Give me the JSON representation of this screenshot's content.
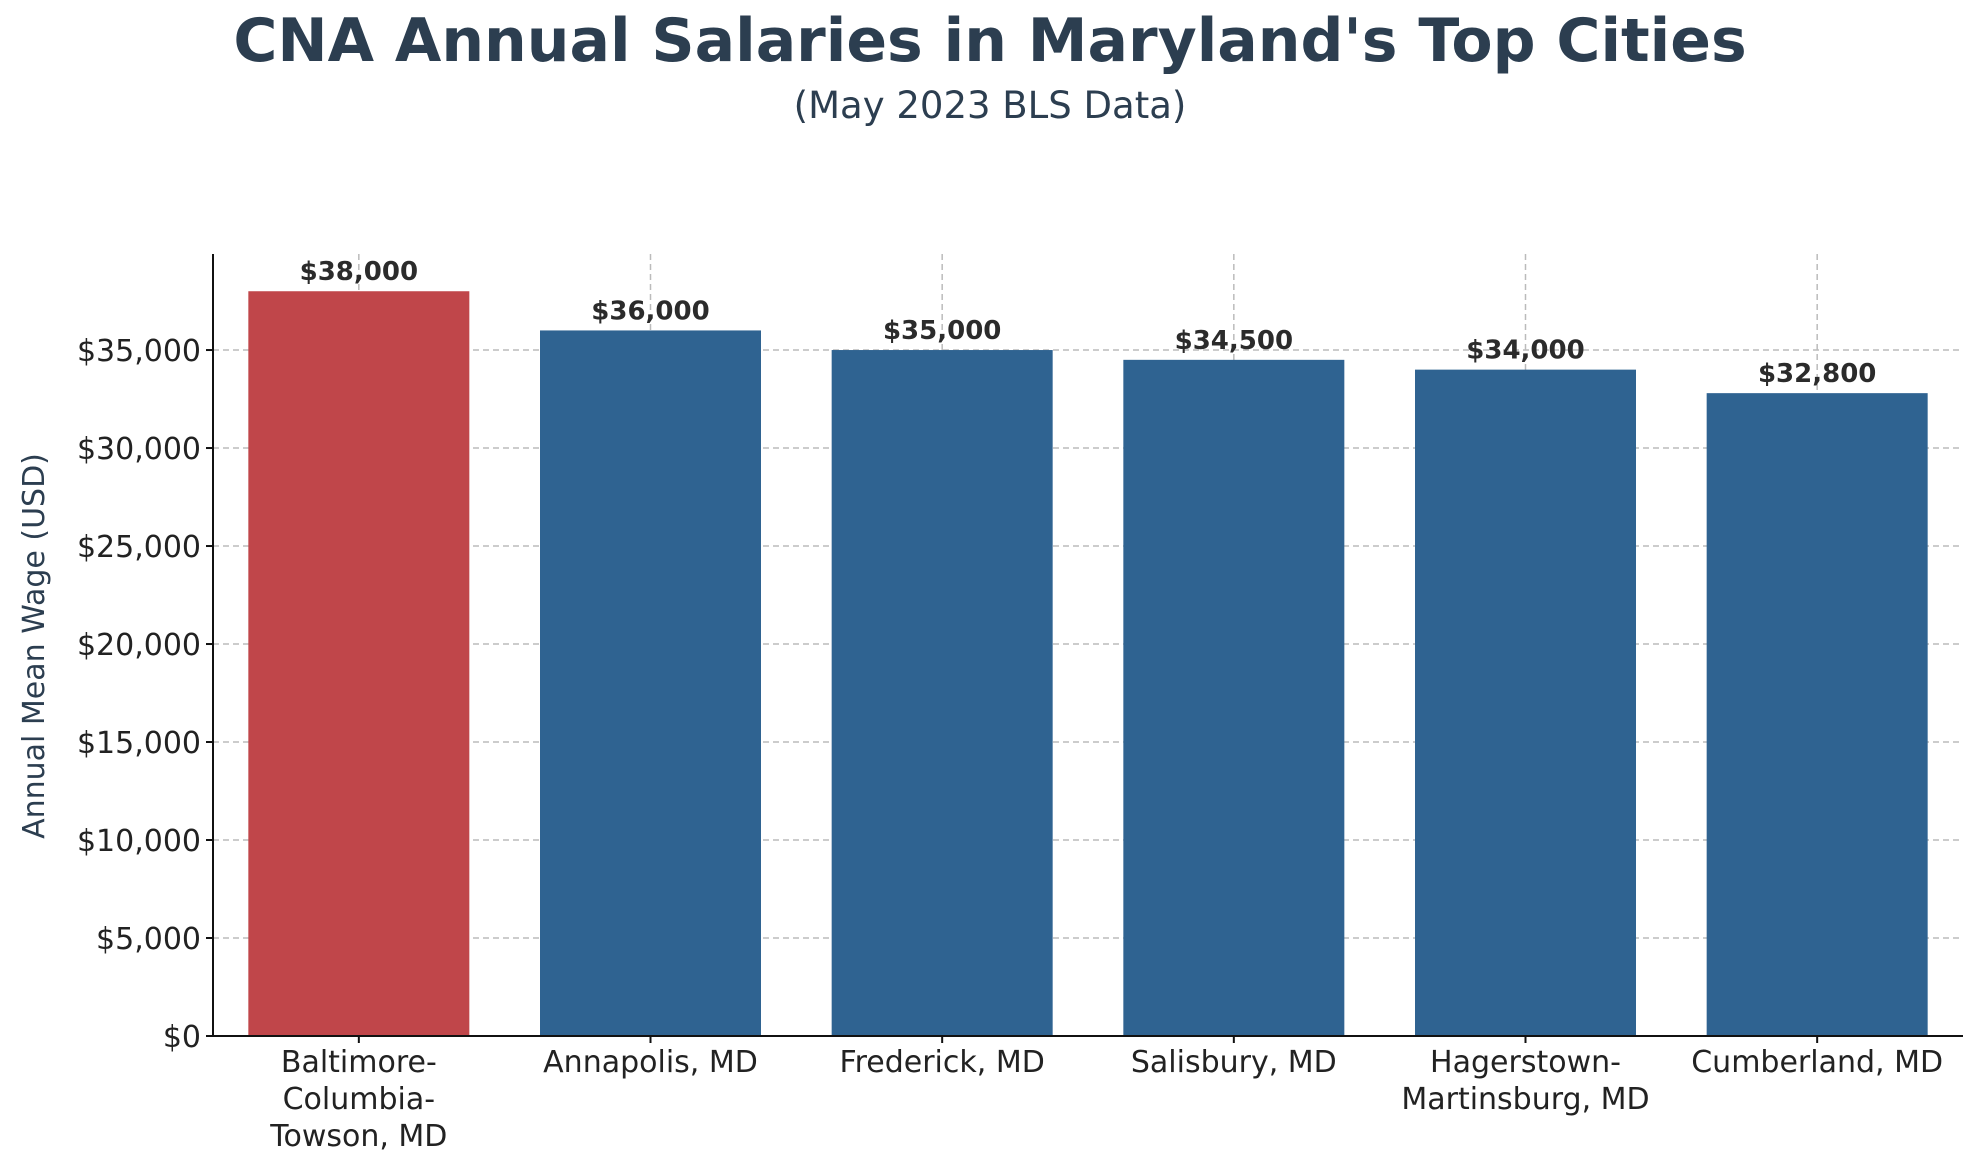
{
  "chart_data": {
    "type": "bar",
    "title": "CNA Annual Salaries in Maryland's Top Cities",
    "subtitle": "(May 2023 BLS Data)",
    "xlabel": "",
    "ylabel": "Annual Mean Wage (USD)",
    "categories": [
      [
        "Baltimore-",
        "Columbia-",
        "Towson, MD"
      ],
      [
        "Annapolis, MD"
      ],
      [
        "Frederick, MD"
      ],
      [
        "Salisbury, MD"
      ],
      [
        "Hagerstown-",
        "Martinsburg, MD"
      ],
      [
        "Cumberland, MD"
      ]
    ],
    "values": [
      38000,
      36000,
      35000,
      34500,
      34000,
      32800
    ],
    "value_labels": [
      "$38,000",
      "$36,000",
      "$35,000",
      "$34,500",
      "$34,000",
      "$32,800"
    ],
    "yticks": [
      0,
      5000,
      10000,
      15000,
      20000,
      25000,
      30000,
      35000
    ],
    "ytick_labels": [
      "$0",
      "$5,000",
      "$10,000",
      "$15,000",
      "$20,000",
      "$25,000",
      "$30,000",
      "$35,000"
    ],
    "ylim": [
      0,
      39900
    ],
    "grid": true,
    "colors": {
      "highlight": "#c0464a",
      "default": "#2f6391",
      "title": "#2c3e50"
    },
    "highlight_index": 0
  }
}
